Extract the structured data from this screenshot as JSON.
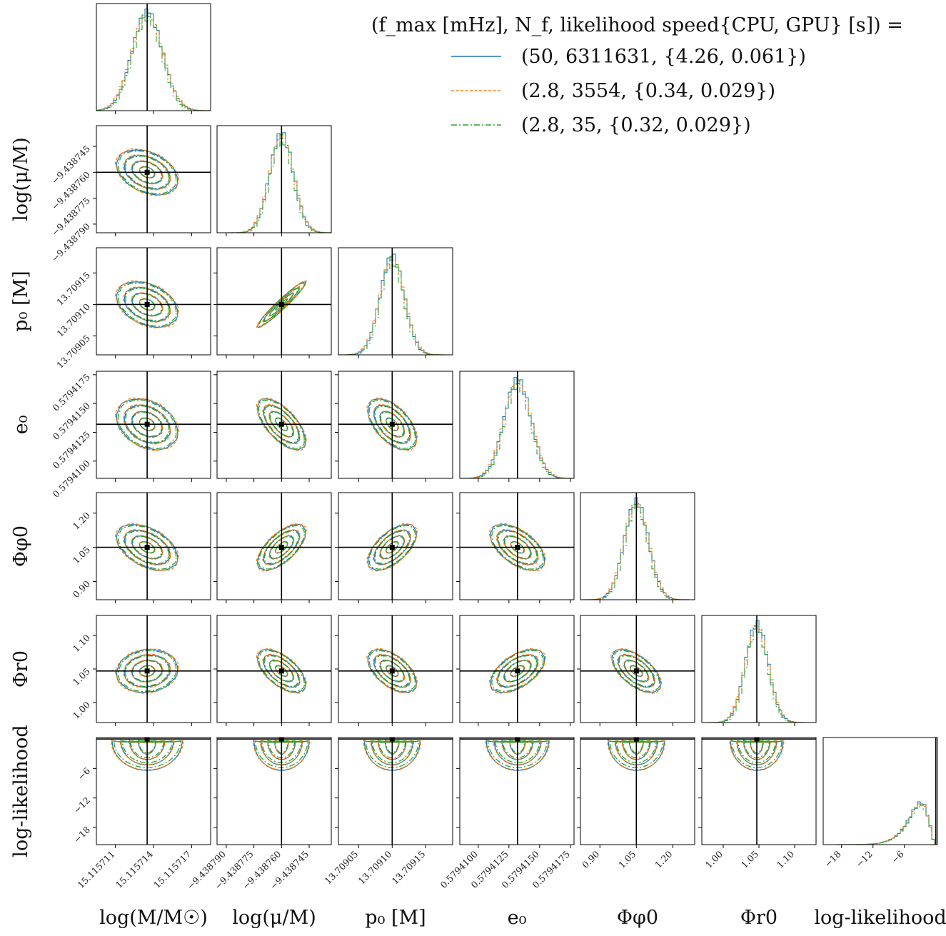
{
  "chart_data": {
    "type": "corner",
    "truth_color": "#000000",
    "parameters": [
      {
        "key": "logM",
        "label": "log(M/M☉)",
        "truth": 15.1157135,
        "range": [
          15.1157095,
          15.1157185
        ],
        "ticks": [
          "15.115711",
          "15.115714",
          "15.115717"
        ],
        "tick_values": [
          15.115711,
          15.115714,
          15.115717
        ],
        "sigma": 1.2e-06
      },
      {
        "key": "logmu",
        "label": "log(μ/M)",
        "truth": -9.43876,
        "range": [
          -9.438795,
          -9.438733
        ],
        "ticks": [
          "−9.438790",
          "−9.438775",
          "−9.438760",
          "−9.438745"
        ],
        "tick_values": [
          -9.43879,
          -9.438775,
          -9.43876,
          -9.438745
        ],
        "sigma": 6.5e-06
      },
      {
        "key": "p0",
        "label": "p₀ [M]",
        "truth": 13.7091,
        "range": [
          13.70902,
          13.70919
        ],
        "ticks": [
          "13.70905",
          "13.70910",
          "13.70915"
        ],
        "tick_values": [
          13.70905,
          13.7091,
          13.70915
        ],
        "sigma": 1.8e-05
      },
      {
        "key": "e0",
        "label": "e₀",
        "truth": 0.5794132,
        "range": [
          0.5794085,
          0.5794178
        ],
        "ticks": [
          "0.5794100",
          "0.5794125",
          "0.5794150",
          "0.5794175"
        ],
        "tick_values": [
          0.57941,
          0.5794125,
          0.579415,
          0.5794175
        ],
        "sigma": 1.1e-06
      },
      {
        "key": "phiphi",
        "label": "Φφ0",
        "truth": 1.05,
        "range": [
          0.82,
          1.29
        ],
        "ticks": [
          "0.90",
          "1.05",
          "1.20"
        ],
        "tick_values": [
          0.9,
          1.05,
          1.2
        ],
        "sigma": 0.05
      },
      {
        "key": "phir",
        "label": "Φr0",
        "truth": 1.047,
        "range": [
          0.97,
          1.13
        ],
        "ticks": [
          "1.00",
          "1.05",
          "1.10"
        ],
        "tick_values": [
          1.0,
          1.05,
          1.1
        ],
        "sigma": 0.016
      },
      {
        "key": "loglike",
        "label": "log-likelihood",
        "truth": 0.0,
        "range": [
          -21.5,
          0.3
        ],
        "ticks": [
          "−18",
          "−12",
          "−6"
        ],
        "tick_values": [
          -18,
          -12,
          -6
        ],
        "sigma": 2.6
      }
    ],
    "correlations": {
      "logM-logmu": -0.35,
      "logM-p0": -0.35,
      "logM-e0": -0.3,
      "logM-phiphi": -0.45,
      "logM-phir": 0.1,
      "logmu-p0": 0.96,
      "logmu-e0": -0.65,
      "logmu-phiphi": 0.65,
      "logmu-phir": -0.6,
      "p0-e0": -0.55,
      "p0-phiphi": 0.6,
      "p0-phir": -0.55,
      "e0-phiphi": -0.55,
      "e0-phir": 0.55,
      "phiphi-phir": -0.6
    },
    "series": [
      {
        "name": "(50, 6311631, {4.26, 0.061})",
        "color": "#1f77b4",
        "dash": "",
        "scale": 1.0
      },
      {
        "name": "(2.8, 3554, {0.34, 0.029})",
        "color": "#ff7f0e",
        "dash": "4,2.5",
        "scale": 1.03
      },
      {
        "name": "(2.8, 35, {0.32, 0.029})",
        "color": "#2ca02c",
        "dash": "8,3,2,3",
        "scale": 0.95
      }
    ],
    "legend": {
      "title": "(f_max [mHz], N_f, likelihood speed{CPU, GPU} [s]) =",
      "position": "top-right"
    }
  }
}
